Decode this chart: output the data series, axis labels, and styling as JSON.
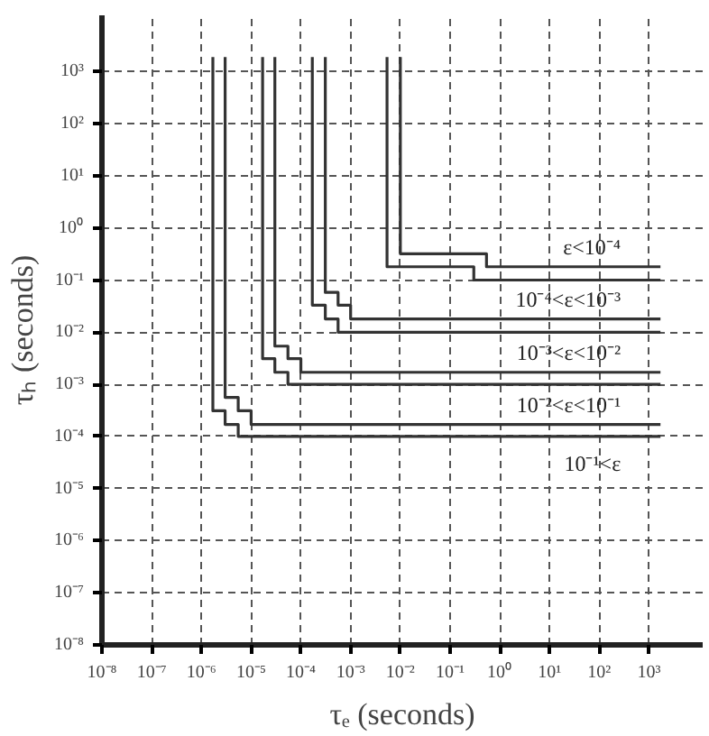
{
  "chart_data": {
    "type": "line",
    "xlabel": "τₑ (seconds)",
    "ylabel": "τₕ (seconds)",
    "log": "xy",
    "grid": true,
    "marker": "none",
    "line_style": "solid",
    "xlim": [
      1e-08,
      12000
    ],
    "ylim": [
      1e-08,
      12000
    ],
    "xticks": [
      {
        "value": 1e-08,
        "label": "10⁻⁸"
      },
      {
        "value": 1e-07,
        "label": "10⁻⁷"
      },
      {
        "value": 1e-06,
        "label": "10⁻⁶"
      },
      {
        "value": 1e-05,
        "label": "10⁻⁵"
      },
      {
        "value": 0.0001,
        "label": "10⁻⁴"
      },
      {
        "value": 0.001,
        "label": "10⁻³"
      },
      {
        "value": 0.01,
        "label": "10⁻²"
      },
      {
        "value": 0.1,
        "label": "10⁻¹"
      },
      {
        "value": 1,
        "label": "10⁰"
      },
      {
        "value": 10,
        "label": "10¹"
      },
      {
        "value": 100,
        "label": "10²"
      },
      {
        "value": 1000,
        "label": "10³"
      }
    ],
    "yticks": [
      {
        "value": 1e-08,
        "label": "10⁻⁸"
      },
      {
        "value": 1e-07,
        "label": "10⁻⁷"
      },
      {
        "value": 1e-06,
        "label": "10⁻⁶"
      },
      {
        "value": 1e-05,
        "label": "10⁻⁵"
      },
      {
        "value": 0.0001,
        "label": "10⁻⁴"
      },
      {
        "value": 0.001,
        "label": "10⁻³"
      },
      {
        "value": 0.01,
        "label": "10⁻²"
      },
      {
        "value": 0.1,
        "label": "10⁻¹"
      },
      {
        "value": 1,
        "label": "10⁰"
      },
      {
        "value": 10,
        "label": "10¹"
      },
      {
        "value": 100,
        "label": "10²"
      },
      {
        "value": 1000,
        "label": "10³"
      }
    ],
    "series": [
      {
        "color": "#333333",
        "x": [
          0.01,
          0.01,
          0.54,
          0.54,
          1700
        ],
        "values": [
          1900,
          0.32,
          0.32,
          0.18,
          0.18
        ]
      },
      {
        "color": "#333333",
        "x": [
          0.0054,
          0.0054,
          0.3,
          0.3,
          1700
        ],
        "values": [
          1900,
          0.18,
          0.18,
          0.1,
          0.1
        ]
      },
      {
        "color": "#333333",
        "x": [
          0.00031,
          0.00031,
          0.00056,
          0.00056,
          0.001,
          0.001,
          1700
        ],
        "values": [
          1900,
          0.058,
          0.058,
          0.033,
          0.033,
          0.018,
          0.018
        ]
      },
      {
        "color": "#333333",
        "x": [
          0.00017,
          0.00017,
          0.00031,
          0.00031,
          0.00056,
          0.00056,
          1700
        ],
        "values": [
          1900,
          0.033,
          0.033,
          0.018,
          0.018,
          0.01,
          0.01
        ]
      },
      {
        "color": "#333333",
        "x": [
          3e-05,
          3e-05,
          5.5e-05,
          5.5e-05,
          0.0001,
          0.0001,
          1700
        ],
        "values": [
          1900,
          0.0054,
          0.0054,
          0.0031,
          0.0031,
          0.0017,
          0.0017
        ]
      },
      {
        "color": "#333333",
        "x": [
          1.7e-05,
          1.7e-05,
          3e-05,
          3e-05,
          5.5e-05,
          5.5e-05,
          1700
        ],
        "values": [
          1900,
          0.0031,
          0.0031,
          0.0017,
          0.0017,
          0.001,
          0.001
        ]
      },
      {
        "color": "#333333",
        "x": [
          3e-06,
          3e-06,
          5.5e-06,
          5.5e-06,
          1e-05,
          1e-05,
          1700
        ],
        "values": [
          1900,
          0.00056,
          0.00056,
          0.00031,
          0.00031,
          0.00017,
          0.00017
        ]
      },
      {
        "color": "#333333",
        "x": [
          1.7e-06,
          1.7e-06,
          3e-06,
          3e-06,
          5.5e-06,
          5.5e-06,
          1700
        ],
        "values": [
          1900,
          0.00031,
          0.00031,
          0.00017,
          0.00017,
          0.0001,
          0.0001
        ]
      }
    ],
    "annotations": [
      "ε<10⁻⁴",
      "10⁻⁴<ε<10⁻³",
      "10⁻³<ε<10⁻²",
      "10⁻²<ε<10⁻¹",
      "10⁻¹<ε"
    ]
  }
}
